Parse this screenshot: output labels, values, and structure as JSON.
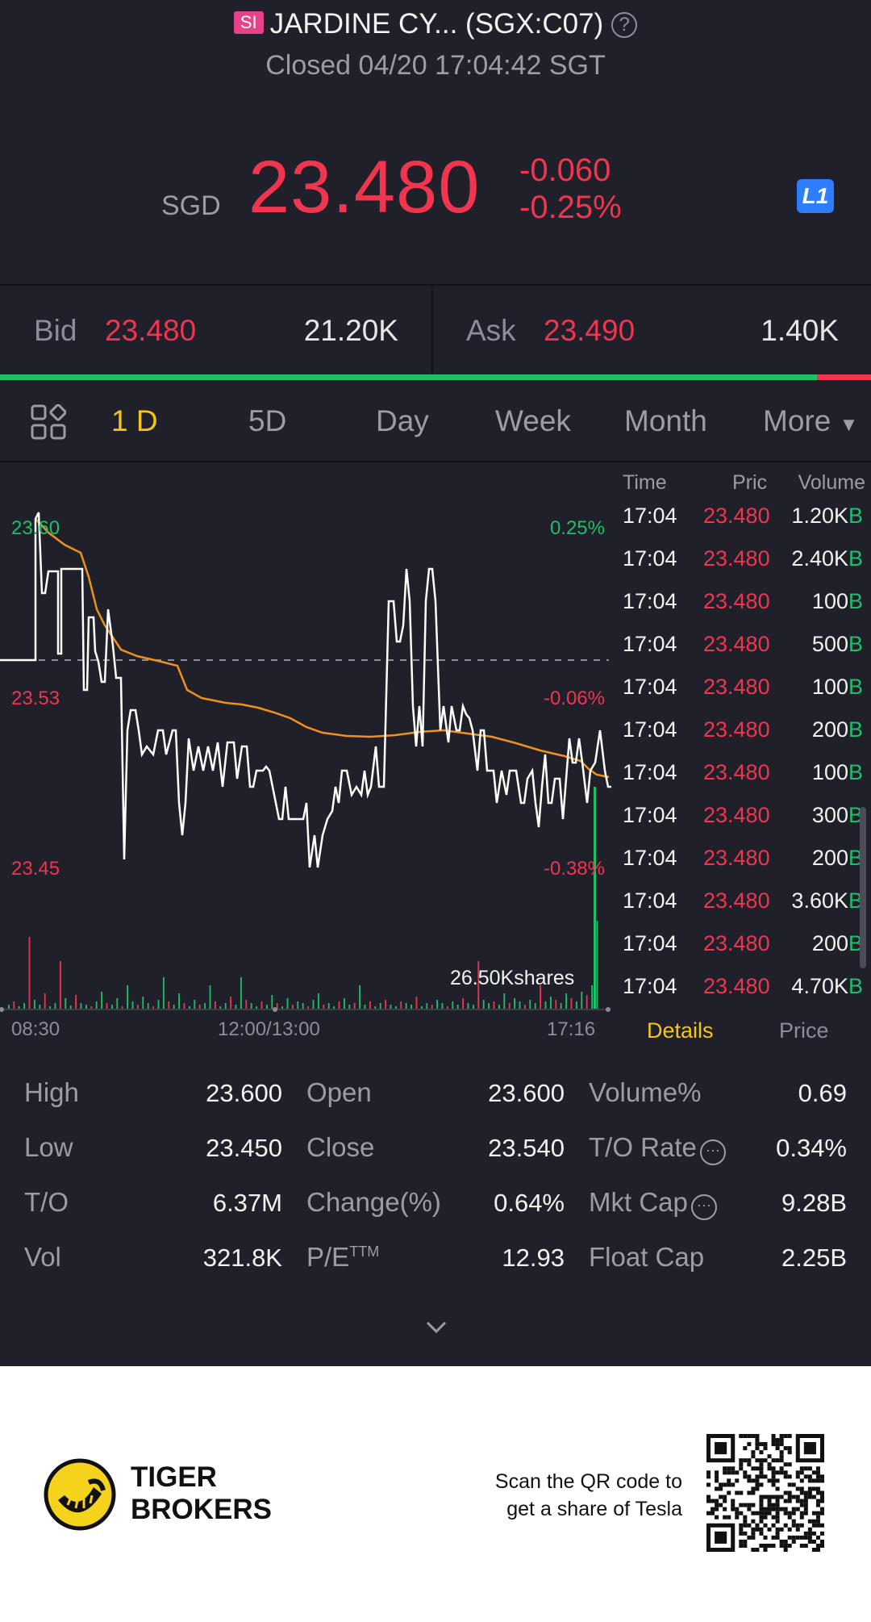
{
  "header": {
    "badge": "SI",
    "title": "JARDINE CY... (SGX:C07)",
    "status": "Closed 04/20 17:04:42 SGT",
    "currency": "SGD",
    "price": "23.480",
    "change": "-0.060",
    "change_pct": "-0.25%",
    "level_badge": "L1"
  },
  "quote": {
    "bid_label": "Bid",
    "bid_price": "23.480",
    "bid_size": "21.20K",
    "ask_label": "Ask",
    "ask_price": "23.490",
    "ask_size": "1.40K"
  },
  "tabs": [
    "1 D",
    "5D",
    "Day",
    "Week",
    "Month",
    "More"
  ],
  "active_tab": "1 D",
  "chart": {
    "y_labels": [
      "23.60",
      "23.53",
      "23.45"
    ],
    "pct_labels": [
      "0.25%",
      "-0.06%",
      "-0.38%"
    ],
    "x_labels": [
      "08:30",
      "12:00/13:00",
      "17:16"
    ],
    "volume_label": "26.50Kshares",
    "colors": {
      "price": "#ffffff",
      "avg": "#f0901d",
      "up": "#1fbf6a",
      "down": "#f0354e"
    }
  },
  "trades": {
    "headers": [
      "Time",
      "Pric",
      "Volume"
    ],
    "rows": [
      {
        "time": "17:04",
        "price": "23.480",
        "vol": "1.20K",
        "flag": "B"
      },
      {
        "time": "17:04",
        "price": "23.480",
        "vol": "2.40K",
        "flag": "B"
      },
      {
        "time": "17:04",
        "price": "23.480",
        "vol": "100",
        "flag": "B"
      },
      {
        "time": "17:04",
        "price": "23.480",
        "vol": "500",
        "flag": "B"
      },
      {
        "time": "17:04",
        "price": "23.480",
        "vol": "100",
        "flag": "B"
      },
      {
        "time": "17:04",
        "price": "23.480",
        "vol": "200",
        "flag": "B"
      },
      {
        "time": "17:04",
        "price": "23.480",
        "vol": "100",
        "flag": "B"
      },
      {
        "time": "17:04",
        "price": "23.480",
        "vol": "300",
        "flag": "B"
      },
      {
        "time": "17:04",
        "price": "23.480",
        "vol": "200",
        "flag": "B"
      },
      {
        "time": "17:04",
        "price": "23.480",
        "vol": "3.60K",
        "flag": "B"
      },
      {
        "time": "17:04",
        "price": "23.480",
        "vol": "200",
        "flag": "B"
      },
      {
        "time": "17:04",
        "price": "23.480",
        "vol": "4.70K",
        "flag": "B"
      }
    ],
    "tab_details": "Details",
    "tab_price": "Price"
  },
  "stats": {
    "col1": [
      [
        "High",
        "23.600"
      ],
      [
        "Low",
        "23.450"
      ],
      [
        "T/O",
        "6.37M"
      ],
      [
        "Vol",
        "321.8K"
      ]
    ],
    "col2": [
      [
        "Open",
        "23.600"
      ],
      [
        "Close",
        "23.540"
      ],
      [
        "Change(%)",
        "0.64%"
      ],
      [
        "P/E",
        "12.93"
      ]
    ],
    "pe_sup": "TTM",
    "col3": [
      [
        "Volume%",
        "0.69"
      ],
      [
        "T/O Rate",
        "0.34%"
      ],
      [
        "Mkt Cap",
        "9.28B"
      ],
      [
        "Float Cap",
        "2.25B"
      ]
    ]
  },
  "footer": {
    "brand_line1": "TIGER",
    "brand_line2": "BROKERS",
    "promo_line1": "Scan the QR code to",
    "promo_line2": "get a share of Tesla"
  }
}
